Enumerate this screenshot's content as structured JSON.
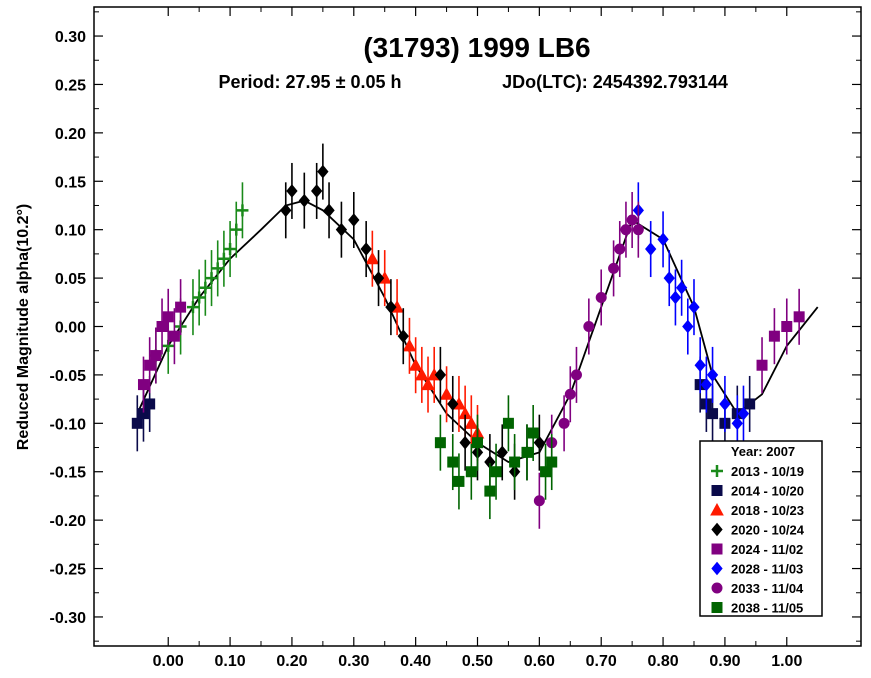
{
  "chart_data": {
    "type": "scatter",
    "title": "(31793) 1999 LB6",
    "subtitle_period": "Period: 27.95 ± 0.05 h",
    "subtitle_epoch": "JDo(LTC): 2454392.793144",
    "ylabel": "Reduced Magnitude alpha(10.2°)",
    "xlabel": "",
    "xlim": [
      -0.12,
      1.12
    ],
    "ylim": [
      0.33,
      -0.33
    ],
    "y_inverted": true,
    "grid": false,
    "xticks": [
      0.0,
      0.1,
      0.2,
      0.3,
      0.4,
      0.5,
      0.6,
      0.7,
      0.8,
      0.9,
      1.0
    ],
    "xtick_labels": [
      "0.00",
      "0.10",
      "0.20",
      "0.30",
      "0.40",
      "0.50",
      "0.60",
      "0.70",
      "0.80",
      "0.90",
      "1.00"
    ],
    "yticks": [
      -0.3,
      -0.25,
      -0.2,
      -0.15,
      -0.1,
      -0.05,
      0.0,
      0.05,
      0.1,
      0.15,
      0.2,
      0.25,
      0.3
    ],
    "ytick_labels": [
      "-0.30",
      "-0.25",
      "-0.20",
      "-0.15",
      "-0.10",
      "-0.05",
      "0.00",
      "0.05",
      "0.10",
      "0.15",
      "0.20",
      "0.25",
      "0.30"
    ],
    "legend": {
      "title": "Year: 2007",
      "placement": "bottom-right",
      "entries": [
        {
          "label": "2013 - 10/19",
          "marker": "plus",
          "color": "#1a8a1a"
        },
        {
          "label": "2014 - 10/20",
          "marker": "square",
          "color": "#0a0a4a"
        },
        {
          "label": "2018 - 10/23",
          "marker": "triangle",
          "color": "#ff1a00"
        },
        {
          "label": "2020 - 10/24",
          "marker": "diamond",
          "color": "#000000"
        },
        {
          "label": "2024 - 11/02",
          "marker": "square",
          "color": "#800080"
        },
        {
          "label": "2028 - 11/03",
          "marker": "diamond",
          "color": "#0000ff"
        },
        {
          "label": "2033 - 11/04",
          "marker": "circle",
          "color": "#800080"
        },
        {
          "label": "2038 - 11/05",
          "marker": "square",
          "color": "#006400"
        }
      ]
    },
    "fit_curve": {
      "x": [
        -0.05,
        0.0,
        0.05,
        0.1,
        0.15,
        0.19,
        0.22,
        0.25,
        0.3,
        0.35,
        0.4,
        0.45,
        0.5,
        0.55,
        0.6,
        0.65,
        0.7,
        0.75,
        0.8,
        0.85,
        0.88,
        0.92,
        0.96,
        1.0,
        1.05
      ],
      "y": [
        -0.09,
        -0.02,
        0.03,
        0.07,
        0.1,
        0.125,
        0.13,
        0.12,
        0.09,
        0.03,
        -0.04,
        -0.09,
        -0.12,
        -0.14,
        -0.13,
        -0.07,
        0.02,
        0.11,
        0.09,
        0.02,
        -0.05,
        -0.09,
        -0.07,
        -0.02,
        0.02
      ]
    },
    "series": [
      {
        "name": "2013 - 10/19",
        "x": [
          -0.02,
          0.0,
          0.02,
          0.04,
          0.05,
          0.06,
          0.07,
          0.08,
          0.09,
          0.1,
          0.11,
          0.12
        ],
        "y": [
          -0.03,
          -0.02,
          0.0,
          0.02,
          0.03,
          0.04,
          0.05,
          0.06,
          0.07,
          0.08,
          0.1,
          0.12
        ]
      },
      {
        "name": "2014 - 10/20",
        "x": [
          -0.05,
          -0.04,
          -0.03,
          0.86,
          0.87,
          0.88,
          0.9,
          0.92,
          0.94
        ],
        "y": [
          -0.1,
          -0.09,
          -0.08,
          -0.06,
          -0.08,
          -0.09,
          -0.1,
          -0.09,
          -0.08
        ]
      },
      {
        "name": "2018 - 10/23",
        "x": [
          0.33,
          0.35,
          0.37,
          0.39,
          0.4,
          0.41,
          0.42,
          0.43,
          0.45,
          0.47,
          0.48,
          0.49,
          0.5
        ],
        "y": [
          0.07,
          0.05,
          0.02,
          -0.02,
          -0.04,
          -0.05,
          -0.06,
          -0.05,
          -0.07,
          -0.08,
          -0.09,
          -0.1,
          -0.11
        ]
      },
      {
        "name": "2020 - 10/24",
        "x": [
          0.19,
          0.2,
          0.22,
          0.24,
          0.25,
          0.26,
          0.28,
          0.3,
          0.32,
          0.34,
          0.36,
          0.38,
          0.44,
          0.46,
          0.48,
          0.5,
          0.52,
          0.54,
          0.56,
          0.58,
          0.6
        ],
        "y": [
          0.12,
          0.14,
          0.13,
          0.14,
          0.16,
          0.12,
          0.1,
          0.11,
          0.08,
          0.05,
          0.02,
          -0.01,
          -0.05,
          -0.08,
          -0.12,
          -0.13,
          -0.14,
          -0.13,
          -0.15,
          -0.13,
          -0.12
        ]
      },
      {
        "name": "2024 - 11/02",
        "x": [
          -0.04,
          -0.03,
          -0.02,
          -0.01,
          0.0,
          0.01,
          0.02,
          0.96,
          0.98,
          1.0,
          1.02
        ],
        "y": [
          -0.06,
          -0.04,
          -0.03,
          0.0,
          0.01,
          -0.01,
          0.02,
          -0.04,
          -0.01,
          0.0,
          0.01
        ]
      },
      {
        "name": "2028 - 11/03",
        "x": [
          0.76,
          0.78,
          0.8,
          0.81,
          0.82,
          0.83,
          0.84,
          0.85,
          0.86,
          0.87,
          0.88,
          0.9,
          0.92,
          0.93
        ],
        "y": [
          0.12,
          0.08,
          0.09,
          0.05,
          0.03,
          0.04,
          0.0,
          0.02,
          -0.04,
          -0.06,
          -0.05,
          -0.08,
          -0.1,
          -0.09
        ]
      },
      {
        "name": "2033 - 11/04",
        "x": [
          0.6,
          0.62,
          0.64,
          0.65,
          0.66,
          0.68,
          0.7,
          0.72,
          0.73,
          0.74,
          0.75,
          0.76
        ],
        "y": [
          -0.18,
          -0.12,
          -0.1,
          -0.07,
          -0.05,
          0.0,
          0.03,
          0.06,
          0.08,
          0.1,
          0.11,
          0.1
        ]
      },
      {
        "name": "2038 - 11/05",
        "x": [
          0.44,
          0.46,
          0.47,
          0.49,
          0.5,
          0.52,
          0.53,
          0.55,
          0.56,
          0.58,
          0.59,
          0.61,
          0.62
        ],
        "y": [
          -0.12,
          -0.14,
          -0.16,
          -0.15,
          -0.12,
          -0.17,
          -0.15,
          -0.1,
          -0.14,
          -0.13,
          -0.11,
          -0.15,
          -0.14
        ]
      }
    ]
  }
}
